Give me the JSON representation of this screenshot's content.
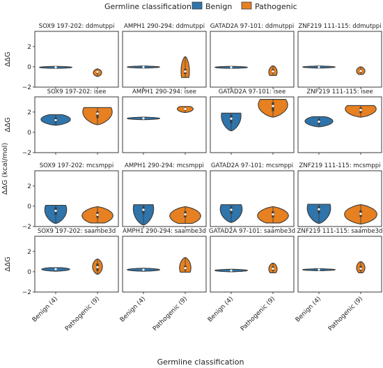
{
  "legend": {
    "title": "Germline classification:",
    "entries": [
      {
        "label": "Benign",
        "color": "#2f74aa"
      },
      {
        "label": "Pathogenic",
        "color": "#e68021"
      }
    ]
  },
  "axis": {
    "xlabel": "Germline classification",
    "ylabel_top": "ΔΔG",
    "ylabel_mid": "ΔΔG (kcal/mol)"
  },
  "chart_data": {
    "type": "violin",
    "ylim": [
      -2,
      3.5
    ],
    "yticks": [
      -2,
      0,
      2
    ],
    "categories": [
      "Benign (4)",
      "Pathogenic (9)"
    ],
    "colors": {
      "Benign (4)": "#2f74aa",
      "Pathogenic (9)": "#e68021"
    },
    "edge_color": "#3a3a3a",
    "grid": false,
    "panels": [
      {
        "title": "SOX9 197-202: ddmutppi",
        "row": 0,
        "col": 0,
        "series": [
          {
            "category": "Benign (4)",
            "min": -0.15,
            "max": 0.05,
            "median": -0.05,
            "q1": -0.1,
            "q3": 0.0,
            "max_half_width": 0.42,
            "peak_pos": 0.5
          },
          {
            "category": "Pathogenic (9)",
            "min": -0.95,
            "max": -0.2,
            "median": -0.5,
            "q1": -0.65,
            "q3": -0.4,
            "max_half_width": 0.1,
            "peak_pos": 0.5
          }
        ]
      },
      {
        "title": "AMPH1 290-294: ddmutppi",
        "row": 0,
        "col": 1,
        "series": [
          {
            "category": "Benign (4)",
            "min": -0.12,
            "max": 0.08,
            "median": -0.02,
            "q1": -0.07,
            "q3": 0.03,
            "max_half_width": 0.42,
            "peak_pos": 0.5
          },
          {
            "category": "Pathogenic (9)",
            "min": -1.05,
            "max": 1.0,
            "median": -0.45,
            "q1": -0.7,
            "q3": -0.2,
            "max_half_width": 0.1,
            "peak_pos": 0.3
          }
        ]
      },
      {
        "title": "GATAD2A 97-101: ddmutppi",
        "row": 0,
        "col": 2,
        "series": [
          {
            "category": "Benign (4)",
            "min": -0.15,
            "max": 0.05,
            "median": -0.05,
            "q1": -0.1,
            "q3": 0.0,
            "max_half_width": 0.42,
            "peak_pos": 0.5
          },
          {
            "category": "Pathogenic (9)",
            "min": -0.85,
            "max": 0.1,
            "median": -0.45,
            "q1": -0.6,
            "q3": -0.25,
            "max_half_width": 0.1,
            "peak_pos": 0.35
          }
        ]
      },
      {
        "title": "ZNF219 111-115: ddmutppi",
        "row": 0,
        "col": 3,
        "series": [
          {
            "category": "Benign (4)",
            "min": -0.12,
            "max": 0.08,
            "median": -0.02,
            "q1": -0.07,
            "q3": 0.03,
            "max_half_width": 0.42,
            "peak_pos": 0.5
          },
          {
            "category": "Pathogenic (9)",
            "min": -0.75,
            "max": 0.0,
            "median": -0.4,
            "q1": -0.55,
            "q3": -0.25,
            "max_half_width": 0.1,
            "peak_pos": 0.45
          }
        ]
      },
      {
        "title": "SOX9 197-202: isee",
        "row": 1,
        "col": 0,
        "series": [
          {
            "category": "Benign (4)",
            "min": 0.7,
            "max": 1.75,
            "median": 1.2,
            "q1": 0.95,
            "q3": 1.45,
            "max_half_width": 0.38,
            "peak_pos": 0.55
          },
          {
            "category": "Pathogenic (9)",
            "min": 0.75,
            "max": 2.45,
            "median": 1.85,
            "q1": 1.4,
            "q3": 2.1,
            "max_half_width": 0.38,
            "peak_pos": 0.75
          }
        ]
      },
      {
        "title": "AMPH1 290-294: isee",
        "row": 1,
        "col": 1,
        "series": [
          {
            "category": "Benign (4)",
            "min": 1.25,
            "max": 1.5,
            "median": 1.38,
            "q1": 1.32,
            "q3": 1.44,
            "max_half_width": 0.42,
            "peak_pos": 0.5
          },
          {
            "category": "Pathogenic (9)",
            "min": 1.95,
            "max": 2.55,
            "median": 2.3,
            "q1": 2.15,
            "q3": 2.4,
            "max_half_width": 0.2,
            "peak_pos": 0.6
          }
        ]
      },
      {
        "title": "GATAD2A 97-101: isee",
        "row": 1,
        "col": 2,
        "series": [
          {
            "category": "Benign (4)",
            "min": 0.15,
            "max": 1.9,
            "median": 1.35,
            "q1": 0.9,
            "q3": 1.7,
            "max_half_width": 0.25,
            "peak_pos": 0.85
          },
          {
            "category": "Pathogenic (9)",
            "min": 1.5,
            "max": 3.25,
            "median": 2.6,
            "q1": 2.1,
            "q3": 2.95,
            "max_half_width": 0.38,
            "peak_pos": 0.7
          }
        ]
      },
      {
        "title": "ZNF219 111-115: isee",
        "row": 1,
        "col": 3,
        "series": [
          {
            "category": "Benign (4)",
            "min": 0.55,
            "max": 1.55,
            "median": 1.05,
            "q1": 0.8,
            "q3": 1.3,
            "max_half_width": 0.36,
            "peak_pos": 0.55
          },
          {
            "category": "Pathogenic (9)",
            "min": 1.5,
            "max": 2.65,
            "median": 2.2,
            "q1": 1.9,
            "q3": 2.45,
            "max_half_width": 0.4,
            "peak_pos": 0.7
          }
        ]
      },
      {
        "title": "SOX9 197-202: mcsmppi",
        "row": 2,
        "col": 0,
        "series": [
          {
            "category": "Benign (4)",
            "min": -1.7,
            "max": 0.1,
            "median": -0.45,
            "q1": -0.85,
            "q3": -0.1,
            "max_half_width": 0.28,
            "peak_pos": 0.75
          },
          {
            "category": "Pathogenic (9)",
            "min": -1.65,
            "max": -0.05,
            "median": -0.85,
            "q1": -1.15,
            "q3": -0.55,
            "max_half_width": 0.4,
            "peak_pos": 0.45
          }
        ]
      },
      {
        "title": "AMPH1 290-294: mcsmppi",
        "row": 2,
        "col": 1,
        "series": [
          {
            "category": "Benign (4)",
            "min": -1.85,
            "max": 0.15,
            "median": -0.35,
            "q1": -0.75,
            "q3": -0.05,
            "max_half_width": 0.26,
            "peak_pos": 0.8
          },
          {
            "category": "Pathogenic (9)",
            "min": -1.7,
            "max": -0.05,
            "median": -0.8,
            "q1": -1.1,
            "q3": -0.5,
            "max_half_width": 0.4,
            "peak_pos": 0.45
          }
        ]
      },
      {
        "title": "GATAD2A 97-101: mcsmppi",
        "row": 2,
        "col": 2,
        "series": [
          {
            "category": "Benign (4)",
            "min": -1.6,
            "max": 0.15,
            "median": -0.35,
            "q1": -0.75,
            "q3": -0.05,
            "max_half_width": 0.28,
            "peak_pos": 0.75
          },
          {
            "category": "Pathogenic (9)",
            "min": -1.65,
            "max": -0.05,
            "median": -0.8,
            "q1": -1.1,
            "q3": -0.5,
            "max_half_width": 0.4,
            "peak_pos": 0.45
          }
        ]
      },
      {
        "title": "ZNF219 111-115: mcsmppi",
        "row": 2,
        "col": 3,
        "series": [
          {
            "category": "Benign (4)",
            "min": -1.7,
            "max": 0.2,
            "median": -0.3,
            "q1": -0.7,
            "q3": 0.0,
            "max_half_width": 0.3,
            "peak_pos": 0.8
          },
          {
            "category": "Pathogenic (9)",
            "min": -1.75,
            "max": 0.15,
            "median": -0.75,
            "q1": -1.05,
            "q3": -0.4,
            "max_half_width": 0.42,
            "peak_pos": 0.5
          }
        ]
      },
      {
        "title": "SOX9 197-202: saambe3d",
        "row": 3,
        "col": 0,
        "series": [
          {
            "category": "Benign (4)",
            "min": 0.05,
            "max": 0.4,
            "median": 0.25,
            "q1": 0.15,
            "q3": 0.32,
            "max_half_width": 0.36,
            "peak_pos": 0.55
          },
          {
            "category": "Pathogenic (9)",
            "min": -0.25,
            "max": 1.25,
            "median": 0.45,
            "q1": 0.1,
            "q3": 0.8,
            "max_half_width": 0.12,
            "peak_pos": 0.5
          }
        ]
      },
      {
        "title": "AMPH1 290-294: saambe3d",
        "row": 3,
        "col": 1,
        "series": [
          {
            "category": "Benign (4)",
            "min": 0.05,
            "max": 0.35,
            "median": 0.2,
            "q1": 0.12,
            "q3": 0.28,
            "max_half_width": 0.42,
            "peak_pos": 0.5
          },
          {
            "category": "Pathogenic (9)",
            "min": -0.05,
            "max": 1.4,
            "median": 0.35,
            "q1": 0.15,
            "q3": 0.6,
            "max_half_width": 0.14,
            "peak_pos": 0.3
          }
        ]
      },
      {
        "title": "GATAD2A 97-101: saambe3d",
        "row": 3,
        "col": 2,
        "series": [
          {
            "category": "Benign (4)",
            "min": 0.0,
            "max": 0.25,
            "median": 0.12,
            "q1": 0.06,
            "q3": 0.18,
            "max_half_width": 0.42,
            "peak_pos": 0.5
          },
          {
            "category": "Pathogenic (9)",
            "min": -0.1,
            "max": 0.85,
            "median": 0.3,
            "q1": 0.1,
            "q3": 0.5,
            "max_half_width": 0.1,
            "peak_pos": 0.4
          }
        ]
      },
      {
        "title": "ZNF219 111-115: saambe3d",
        "row": 3,
        "col": 3,
        "series": [
          {
            "category": "Benign (4)",
            "min": 0.1,
            "max": 0.3,
            "median": 0.2,
            "q1": 0.15,
            "q3": 0.25,
            "max_half_width": 0.42,
            "peak_pos": 0.5
          },
          {
            "category": "Pathogenic (9)",
            "min": -0.1,
            "max": 1.0,
            "median": 0.3,
            "q1": 0.1,
            "q3": 0.55,
            "max_half_width": 0.1,
            "peak_pos": 0.45
          }
        ]
      }
    ]
  }
}
